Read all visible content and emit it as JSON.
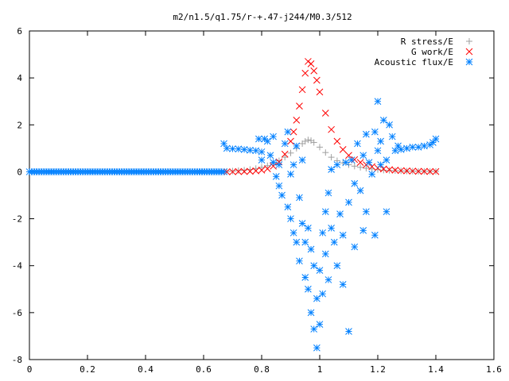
{
  "chart_data": {
    "type": "scatter",
    "title": "m2/n1.5/q1.75/r-+.47-j244/M0.3/512",
    "xlabel": "",
    "ylabel": "",
    "xlim": [
      0,
      1.6
    ],
    "ylim": [
      -8,
      6
    ],
    "x_ticks": [
      "0",
      "0.2",
      "0.4",
      "0.6",
      "0.8",
      "1",
      "1.2",
      "1.4",
      "1.6"
    ],
    "y_ticks": [
      "6",
      "4",
      "2",
      "0",
      "-2",
      "-4",
      "-6",
      "-8"
    ],
    "grid": false,
    "legend_position": "top-right",
    "series": [
      {
        "name": "R stress/E",
        "marker": "+",
        "color": "#a0a0a0",
        "points": [
          [
            0.68,
            0.02
          ],
          [
            0.7,
            0.03
          ],
          [
            0.72,
            0.05
          ],
          [
            0.74,
            0.07
          ],
          [
            0.76,
            0.1
          ],
          [
            0.78,
            0.14
          ],
          [
            0.8,
            0.19
          ],
          [
            0.82,
            0.26
          ],
          [
            0.84,
            0.35
          ],
          [
            0.86,
            0.47
          ],
          [
            0.88,
            0.62
          ],
          [
            0.9,
            0.8
          ],
          [
            0.92,
            1.0
          ],
          [
            0.94,
            1.2
          ],
          [
            0.95,
            1.3
          ],
          [
            0.96,
            1.36
          ],
          [
            0.97,
            1.33
          ],
          [
            0.98,
            1.25
          ],
          [
            1.0,
            1.05
          ],
          [
            1.02,
            0.82
          ],
          [
            1.04,
            0.62
          ],
          [
            1.06,
            0.47
          ],
          [
            1.08,
            0.38
          ],
          [
            1.1,
            0.3
          ],
          [
            1.12,
            0.24
          ],
          [
            1.14,
            0.19
          ],
          [
            1.16,
            0.15
          ],
          [
            1.18,
            0.12
          ],
          [
            1.2,
            0.09
          ],
          [
            1.22,
            0.07
          ],
          [
            1.24,
            0.06
          ],
          [
            1.26,
            0.05
          ],
          [
            1.28,
            0.04
          ],
          [
            1.3,
            0.03
          ],
          [
            1.32,
            0.03
          ],
          [
            1.34,
            0.02
          ],
          [
            1.36,
            0.02
          ],
          [
            1.38,
            0.02
          ],
          [
            1.4,
            0.02
          ]
        ]
      },
      {
        "name": "G work/E",
        "marker": "x",
        "color": "#ff0000",
        "points": [
          [
            0.68,
            0.0
          ],
          [
            0.7,
            0.0
          ],
          [
            0.72,
            0.01
          ],
          [
            0.74,
            0.01
          ],
          [
            0.76,
            0.02
          ],
          [
            0.78,
            0.04
          ],
          [
            0.8,
            0.07
          ],
          [
            0.82,
            0.13
          ],
          [
            0.84,
            0.24
          ],
          [
            0.86,
            0.42
          ],
          [
            0.88,
            0.75
          ],
          [
            0.9,
            1.3
          ],
          [
            0.91,
            1.7
          ],
          [
            0.92,
            2.2
          ],
          [
            0.93,
            2.8
          ],
          [
            0.94,
            3.5
          ],
          [
            0.95,
            4.2
          ],
          [
            0.96,
            4.7
          ],
          [
            0.97,
            4.6
          ],
          [
            0.98,
            4.3
          ],
          [
            0.99,
            3.9
          ],
          [
            1.0,
            3.4
          ],
          [
            1.02,
            2.5
          ],
          [
            1.04,
            1.8
          ],
          [
            1.06,
            1.3
          ],
          [
            1.08,
            0.95
          ],
          [
            1.1,
            0.7
          ],
          [
            1.12,
            0.52
          ],
          [
            1.14,
            0.4
          ],
          [
            1.16,
            0.3
          ],
          [
            1.18,
            0.22
          ],
          [
            1.2,
            0.16
          ],
          [
            1.22,
            0.12
          ],
          [
            1.24,
            0.09
          ],
          [
            1.26,
            0.07
          ],
          [
            1.28,
            0.05
          ],
          [
            1.3,
            0.04
          ],
          [
            1.32,
            0.03
          ],
          [
            1.34,
            0.02
          ],
          [
            1.36,
            0.02
          ],
          [
            1.38,
            0.01
          ],
          [
            1.4,
            0.01
          ]
        ]
      },
      {
        "name": "Acoustic flux/E",
        "marker": "*",
        "color": "#0080ff",
        "points": [
          [
            0.67,
            1.2
          ],
          [
            0.68,
            1.0
          ],
          [
            0.7,
            0.98
          ],
          [
            0.72,
            0.97
          ],
          [
            0.74,
            0.95
          ],
          [
            0.76,
            0.92
          ],
          [
            0.78,
            0.9
          ],
          [
            0.79,
            1.4
          ],
          [
            0.8,
            0.85
          ],
          [
            0.8,
            0.5
          ],
          [
            0.81,
            1.4
          ],
          [
            0.82,
            1.3
          ],
          [
            0.83,
            0.7
          ],
          [
            0.84,
            1.5
          ],
          [
            0.84,
            0.4
          ],
          [
            0.85,
            -0.2
          ],
          [
            0.86,
            0.3
          ],
          [
            0.86,
            -0.6
          ],
          [
            0.87,
            -1.0
          ],
          [
            0.88,
            1.2
          ],
          [
            0.89,
            1.7
          ],
          [
            0.89,
            -1.5
          ],
          [
            0.9,
            -0.1
          ],
          [
            0.9,
            -2.0
          ],
          [
            0.91,
            0.3
          ],
          [
            0.91,
            -2.6
          ],
          [
            0.92,
            1.1
          ],
          [
            0.92,
            -3.0
          ],
          [
            0.93,
            -1.1
          ],
          [
            0.93,
            -3.8
          ],
          [
            0.94,
            0.5
          ],
          [
            0.94,
            -2.2
          ],
          [
            0.95,
            -3.0
          ],
          [
            0.95,
            -4.5
          ],
          [
            0.96,
            -2.4
          ],
          [
            0.96,
            -5.0
          ],
          [
            0.97,
            -3.3
          ],
          [
            0.97,
            -6.0
          ],
          [
            0.98,
            -4.0
          ],
          [
            0.98,
            -6.7
          ],
          [
            0.99,
            -5.4
          ],
          [
            0.99,
            -7.5
          ],
          [
            1.0,
            -4.2
          ],
          [
            1.0,
            -6.5
          ],
          [
            1.01,
            -2.6
          ],
          [
            1.01,
            -5.2
          ],
          [
            1.02,
            -1.7
          ],
          [
            1.02,
            -3.5
          ],
          [
            1.03,
            -0.9
          ],
          [
            1.03,
            -4.6
          ],
          [
            1.04,
            0.1
          ],
          [
            1.04,
            -2.4
          ],
          [
            1.05,
            -3.0
          ],
          [
            1.06,
            0.3
          ],
          [
            1.06,
            -4.0
          ],
          [
            1.07,
            -1.8
          ],
          [
            1.08,
            -4.8
          ],
          [
            1.08,
            -2.7
          ],
          [
            1.09,
            0.4
          ],
          [
            1.1,
            -1.3
          ],
          [
            1.1,
            -6.8
          ],
          [
            1.11,
            0.5
          ],
          [
            1.12,
            -0.5
          ],
          [
            1.12,
            -3.2
          ],
          [
            1.13,
            1.2
          ],
          [
            1.14,
            -0.8
          ],
          [
            1.15,
            0.7
          ],
          [
            1.15,
            -2.5
          ],
          [
            1.16,
            1.6
          ],
          [
            1.16,
            -1.7
          ],
          [
            1.17,
            0.4
          ],
          [
            1.18,
            -0.1
          ],
          [
            1.19,
            1.7
          ],
          [
            1.19,
            -2.7
          ],
          [
            1.2,
            0.9
          ],
          [
            1.2,
            3.0
          ],
          [
            1.21,
            0.3
          ],
          [
            1.21,
            1.3
          ],
          [
            1.22,
            2.2
          ],
          [
            1.23,
            0.5
          ],
          [
            1.23,
            -1.7
          ],
          [
            1.24,
            2.0
          ],
          [
            1.25,
            1.5
          ],
          [
            1.26,
            0.9
          ],
          [
            1.27,
            1.1
          ],
          [
            1.28,
            0.95
          ],
          [
            1.3,
            1.0
          ],
          [
            1.32,
            1.05
          ],
          [
            1.34,
            1.05
          ],
          [
            1.36,
            1.1
          ],
          [
            1.38,
            1.15
          ],
          [
            1.39,
            1.25
          ],
          [
            1.4,
            1.4
          ]
        ],
        "flat_segment": {
          "x_from": 0.0,
          "x_to": 0.67,
          "y": 0.0
        }
      }
    ]
  }
}
